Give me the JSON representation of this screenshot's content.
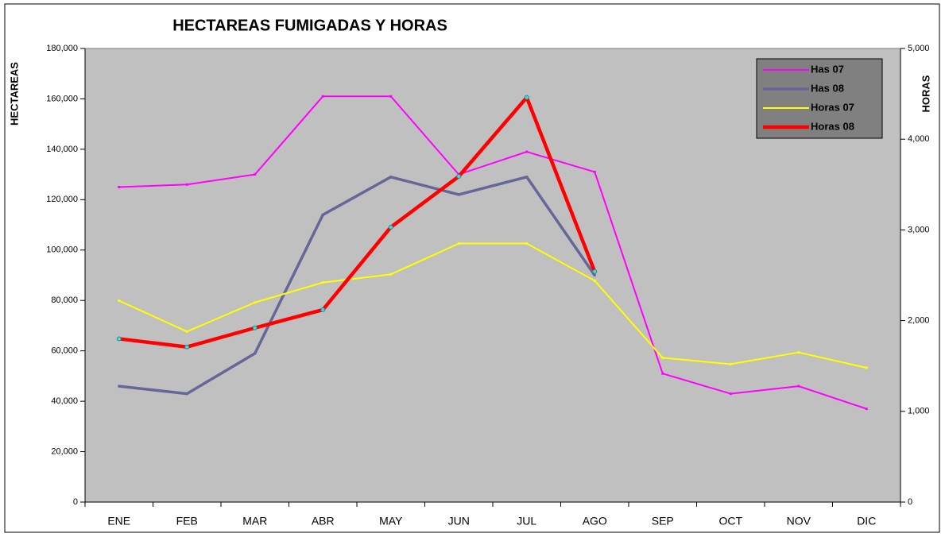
{
  "chart_data": {
    "type": "line",
    "title": "HECTAREAS FUMIGADAS Y HORAS",
    "y_label": "HECTAREAS",
    "y2_label": "HORAS",
    "categories": [
      "ENE",
      "FEB",
      "MAR",
      "ABR",
      "MAY",
      "JUN",
      "JUL",
      "AGO",
      "SEP",
      "OCT",
      "NOV",
      "DIC"
    ],
    "series": [
      {
        "name": "Has 07",
        "color": "#ff00ff",
        "values": [
          125000,
          126000,
          130000,
          161000,
          161000,
          130000,
          139000,
          131000,
          51000,
          43000,
          46000,
          37000
        ]
      },
      {
        "name": "Has 08",
        "color": "#666699",
        "values": [
          46000,
          43000,
          59000,
          114000,
          129000,
          122000,
          129000,
          90000,
          null,
          null,
          null,
          null
        ]
      },
      {
        "name": "Horas 07",
        "color": "#ffff00",
        "axis": "y2",
        "values": [
          2220,
          1880,
          2200,
          2420,
          2510,
          2850,
          2850,
          2440,
          1590,
          1520,
          1650,
          1480
        ]
      },
      {
        "name": "Horas 08",
        "color": "#ff0000",
        "axis": "y2",
        "values": [
          1800,
          1710,
          1920,
          2120,
          3030,
          3590,
          4460,
          2540,
          null,
          null,
          null,
          null
        ]
      }
    ],
    "ylim": [
      0,
      180000
    ],
    "yticks": [
      0,
      {
        "value": 20000,
        "label": "20,000"
      },
      {
        "value": 40000,
        "label": "40,000"
      },
      {
        "value": 60000,
        "label": "60,000"
      },
      {
        "value": 80000,
        "label": "80,000"
      },
      {
        "value": 100000,
        "label": "100,000"
      },
      {
        "value": 120000,
        "label": "120,000"
      },
      {
        "value": 140000,
        "label": "140,000"
      },
      {
        "value": 160000,
        "label": "160,000"
      },
      {
        "value": 180000,
        "label": "180,000"
      }
    ],
    "y2lim": [
      0,
      5000
    ],
    "y2ticks": [
      0,
      {
        "value": 1000,
        "label": "1,000"
      },
      {
        "value": 2000,
        "label": "2,000"
      },
      {
        "value": 3000,
        "label": "3,000"
      },
      {
        "value": 4000,
        "label": "4,000"
      },
      {
        "value": 5000,
        "label": "5,000"
      }
    ],
    "legend": "top-right",
    "plot_background": "#c0c0c0"
  }
}
